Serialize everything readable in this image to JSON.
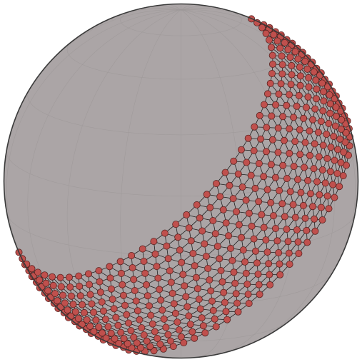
{
  "figure": {
    "kind": "triangulated-band-on-sphere",
    "colors": {
      "background": "#ffffff",
      "sphere_fill": "#aba5a6",
      "sphere_outline": "#3a3a3a",
      "graticule": "#9d9899",
      "mesh_edge": "#1a1a1a",
      "node_fill": "#c0504d",
      "node_stroke": "#5a2422"
    },
    "band": {
      "shape": "spherical band (tilted)",
      "rows": 12,
      "nodes_per_row": 44
    },
    "graticule": {
      "meridians": 18,
      "parallels": 8
    }
  }
}
